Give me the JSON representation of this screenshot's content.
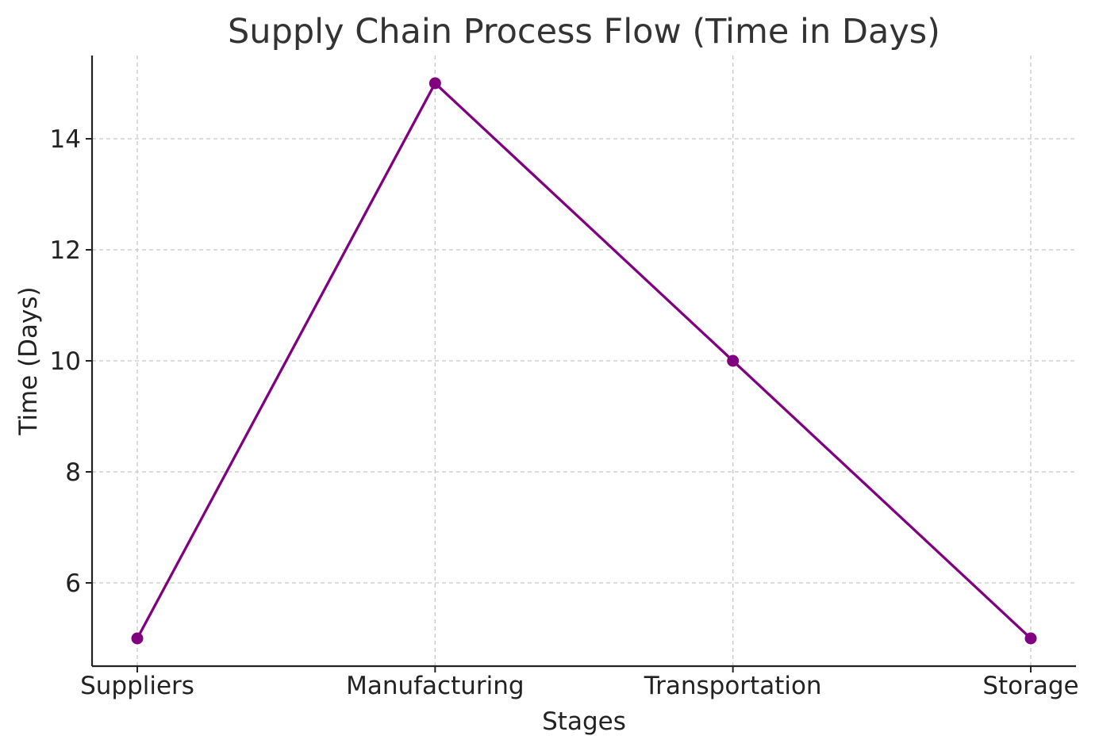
{
  "chart_data": {
    "type": "line",
    "title": "Supply Chain Process Flow (Time in Days)",
    "xlabel": "Stages",
    "ylabel": "Time (Days)",
    "categories": [
      "Suppliers",
      "Manufacturing",
      "Transportation",
      "Storage"
    ],
    "series": [
      {
        "values": [
          5,
          15,
          10,
          5
        ],
        "color": "#800080",
        "marker": "circle"
      }
    ],
    "ylim": [
      4.5,
      15.5
    ],
    "yticks": [
      6,
      8,
      10,
      12,
      14
    ],
    "grid": true,
    "grid_style": "dashed",
    "legend": "none"
  }
}
